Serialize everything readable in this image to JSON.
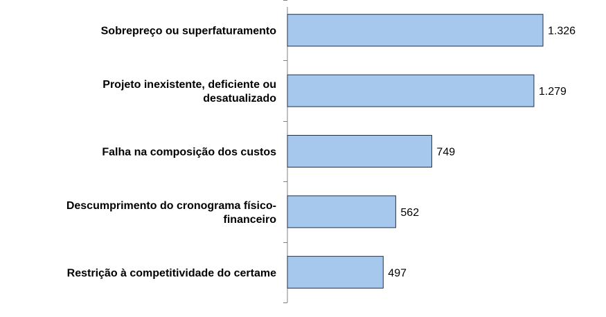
{
  "chart_data": {
    "type": "bar",
    "orientation": "horizontal",
    "title": "",
    "xlabel": "",
    "ylabel": "",
    "categories": [
      "Sobrepreço ou superfaturamento",
      "Projeto inexistente, deficiente ou desatualizado",
      "Falha na composição dos custos",
      "Descumprimento do cronograma físico-financeiro",
      "Restrição à competitividade do certame"
    ],
    "category_lines": [
      [
        "Sobrepreço ou superfaturamento"
      ],
      [
        "Projeto inexistente, deficiente ou",
        "desatualizado"
      ],
      [
        "Falha na composição dos custos"
      ],
      [
        "Descumprimento do cronograma físico-",
        "financeiro"
      ],
      [
        "Restrição à competitividade do certame"
      ]
    ],
    "values": [
      1326,
      1279,
      749,
      562,
      497
    ],
    "value_labels": [
      "1.326",
      "1.279",
      "749",
      "562",
      "497"
    ],
    "xlim": [
      0,
      1600
    ],
    "grid": false,
    "legend": "none",
    "colors": {
      "bar_fill": "#a6c8ec",
      "bar_stroke": "#1f2f4f",
      "axis": "#808080"
    }
  }
}
